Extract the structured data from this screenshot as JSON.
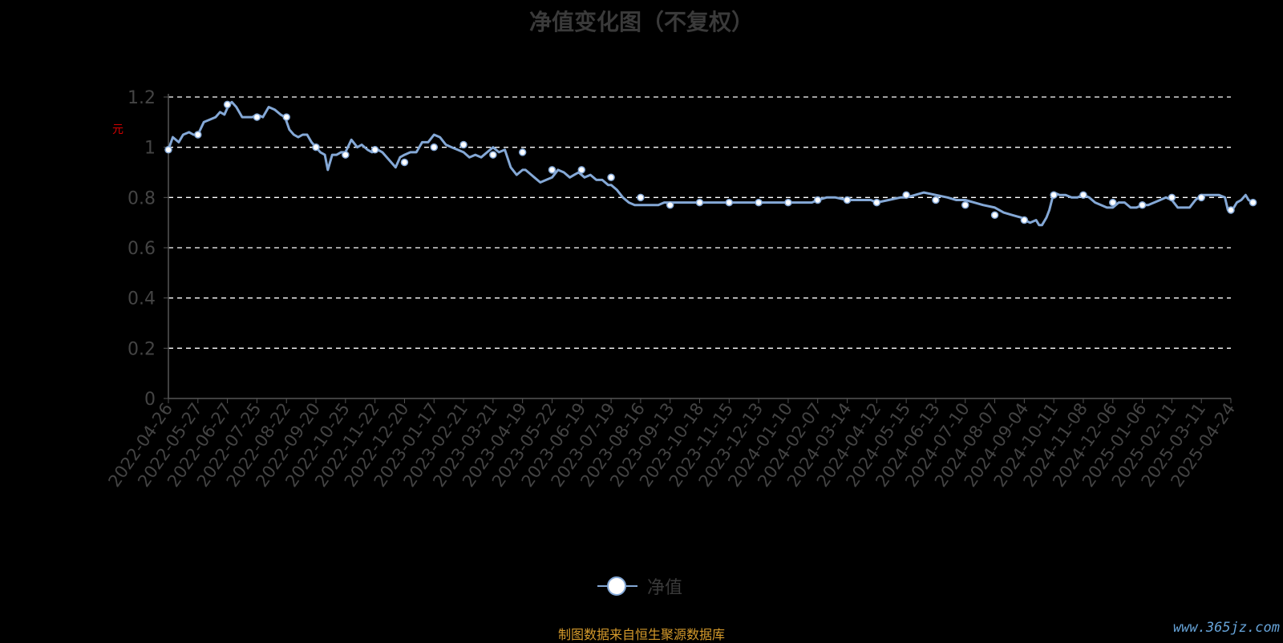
{
  "chart_data": {
    "type": "line",
    "title": "净值变化图（不复权）",
    "ylabel": "元",
    "ylim": [
      0,
      1.2
    ],
    "yticks": [
      "0",
      "0.2",
      "0.4",
      "0.6",
      "0.8",
      "1",
      "1.2"
    ],
    "grid": "horizontal dashed",
    "legend_position": "bottom-center",
    "categories": [
      "2022-04-26",
      "2022-05-27",
      "2022-06-27",
      "2022-07-25",
      "2022-08-22",
      "2022-09-20",
      "2022-10-25",
      "2022-11-22",
      "2022-12-20",
      "2023-01-17",
      "2023-02-21",
      "2023-03-21",
      "2023-04-19",
      "2023-05-22",
      "2023-06-19",
      "2023-07-19",
      "2023-08-16",
      "2023-09-13",
      "2023-10-18",
      "2023-11-15",
      "2023-12-13",
      "2024-01-10",
      "2024-02-07",
      "2024-03-14",
      "2024-04-12",
      "2024-05-15",
      "2024-06-13",
      "2024-07-10",
      "2024-08-07",
      "2024-09-04",
      "2024-10-11",
      "2024-11-08",
      "2024-12-06",
      "2025-01-06",
      "2025-02-11",
      "2025-03-11",
      "2025-04-24"
    ],
    "series": [
      {
        "name": "净值",
        "color": "#84a8d6",
        "x": [
          0,
          0.15,
          0.35,
          0.5,
          0.7,
          0.85,
          1,
          1.2,
          1.4,
          1.6,
          1.75,
          1.9,
          2.05,
          2.15,
          2.3,
          2.5,
          2.7,
          2.85,
          3,
          3.2,
          3.4,
          3.6,
          3.8,
          3.95,
          4.1,
          4.25,
          4.4,
          4.55,
          4.7,
          4.85,
          5,
          5.15,
          5.3,
          5.4,
          5.55,
          5.7,
          5.85,
          6,
          6.2,
          6.4,
          6.55,
          6.75,
          6.9,
          7.1,
          7.25,
          7.4,
          7.55,
          7.7,
          7.85,
          8,
          8.2,
          8.4,
          8.6,
          8.8,
          9,
          9.2,
          9.4,
          9.6,
          9.8,
          10,
          10.2,
          10.4,
          10.6,
          10.8,
          11,
          11.2,
          11.4,
          11.6,
          11.8,
          12,
          12.1,
          12.2,
          12.4,
          12.6,
          12.8,
          13,
          13.2,
          13.4,
          13.6,
          13.75,
          13.9,
          14.1,
          14.3,
          14.5,
          14.7,
          14.9,
          15,
          15.2,
          15.4,
          15.6,
          15.8,
          16,
          16.2,
          16.4,
          16.6,
          16.8,
          17,
          17.2,
          17.4,
          17.6,
          18,
          18.5,
          19,
          19.5,
          20,
          20.5,
          21,
          21.5,
          21.8,
          22,
          22.3,
          22.6,
          23,
          23.4,
          23.8,
          24,
          24.4,
          24.8,
          25,
          25.3,
          25.6,
          26,
          26.4,
          26.7,
          27,
          27.3,
          27.6,
          28,
          28.3,
          28.6,
          28.9,
          29,
          29.2,
          29.4,
          29.5,
          29.6,
          29.75,
          29.85,
          30,
          30.2,
          30.4,
          30.6,
          30.8,
          31,
          31.2,
          31.4,
          31.6,
          31.8,
          32,
          32.2,
          32.4,
          32.6,
          32.8,
          33,
          33.2,
          33.4,
          33.6,
          33.8,
          34,
          34.2,
          34.4,
          34.6,
          34.8,
          35,
          35.2,
          35.4,
          35.6,
          35.8,
          35.9,
          36,
          36.2,
          36.35,
          36.5,
          36.6,
          36.75
        ],
        "y": [
          0.99,
          1.04,
          1.02,
          1.05,
          1.06,
          1.05,
          1.05,
          1.1,
          1.11,
          1.12,
          1.14,
          1.13,
          1.17,
          1.18,
          1.16,
          1.12,
          1.12,
          1.12,
          1.13,
          1.12,
          1.16,
          1.15,
          1.13,
          1.12,
          1.07,
          1.05,
          1.04,
          1.05,
          1.05,
          1.02,
          1.0,
          0.98,
          0.97,
          0.91,
          0.97,
          0.97,
          0.98,
          0.98,
          1.03,
          1.0,
          1.01,
          0.99,
          0.98,
          0.99,
          0.98,
          0.96,
          0.94,
          0.92,
          0.96,
          0.97,
          0.98,
          0.98,
          1.02,
          1.02,
          1.05,
          1.04,
          1.01,
          1.0,
          0.99,
          0.98,
          0.96,
          0.97,
          0.96,
          0.98,
          1.0,
          0.98,
          0.99,
          0.92,
          0.89,
          0.91,
          0.91,
          0.9,
          0.88,
          0.86,
          0.87,
          0.88,
          0.91,
          0.9,
          0.88,
          0.89,
          0.9,
          0.88,
          0.89,
          0.87,
          0.87,
          0.85,
          0.85,
          0.83,
          0.8,
          0.78,
          0.77,
          0.77,
          0.77,
          0.77,
          0.77,
          0.78,
          0.78,
          0.78,
          0.78,
          0.78,
          0.78,
          0.78,
          0.78,
          0.78,
          0.78,
          0.78,
          0.78,
          0.78,
          0.78,
          0.79,
          0.8,
          0.8,
          0.79,
          0.79,
          0.79,
          0.78,
          0.79,
          0.8,
          0.8,
          0.81,
          0.82,
          0.81,
          0.8,
          0.79,
          0.79,
          0.78,
          0.77,
          0.76,
          0.74,
          0.73,
          0.72,
          0.71,
          0.7,
          0.71,
          0.69,
          0.69,
          0.72,
          0.75,
          0.82,
          0.81,
          0.81,
          0.8,
          0.8,
          0.81,
          0.8,
          0.78,
          0.77,
          0.76,
          0.76,
          0.78,
          0.78,
          0.76,
          0.76,
          0.77,
          0.77,
          0.78,
          0.79,
          0.8,
          0.79,
          0.76,
          0.76,
          0.76,
          0.79,
          0.81,
          0.81,
          0.81,
          0.81,
          0.8,
          0.75,
          0.74,
          0.78,
          0.79,
          0.81,
          0.79,
          0.78
        ]
      }
    ],
    "marker_x": [
      0,
      1,
      2,
      3,
      4,
      5,
      6,
      7,
      8,
      9,
      10,
      11,
      12,
      13,
      14,
      15,
      16,
      17,
      18,
      19,
      20,
      21,
      22,
      23,
      24,
      25,
      26,
      27,
      28,
      29,
      30,
      31,
      32,
      33,
      34,
      35,
      36,
      36.75
    ],
    "marker_y": [
      0.99,
      1.05,
      1.17,
      1.12,
      1.12,
      1.0,
      0.97,
      0.99,
      0.94,
      1.0,
      1.01,
      0.97,
      0.98,
      0.91,
      0.91,
      0.88,
      0.8,
      0.77,
      0.78,
      0.78,
      0.78,
      0.78,
      0.79,
      0.79,
      0.78,
      0.81,
      0.79,
      0.77,
      0.73,
      0.71,
      0.81,
      0.81,
      0.78,
      0.77,
      0.8,
      0.8,
      0.75,
      0.78
    ]
  },
  "legend": {
    "label": "净值"
  },
  "footer": {
    "source": "制图数据来自恒生聚源数据库",
    "watermark": "www.365jz.com"
  }
}
